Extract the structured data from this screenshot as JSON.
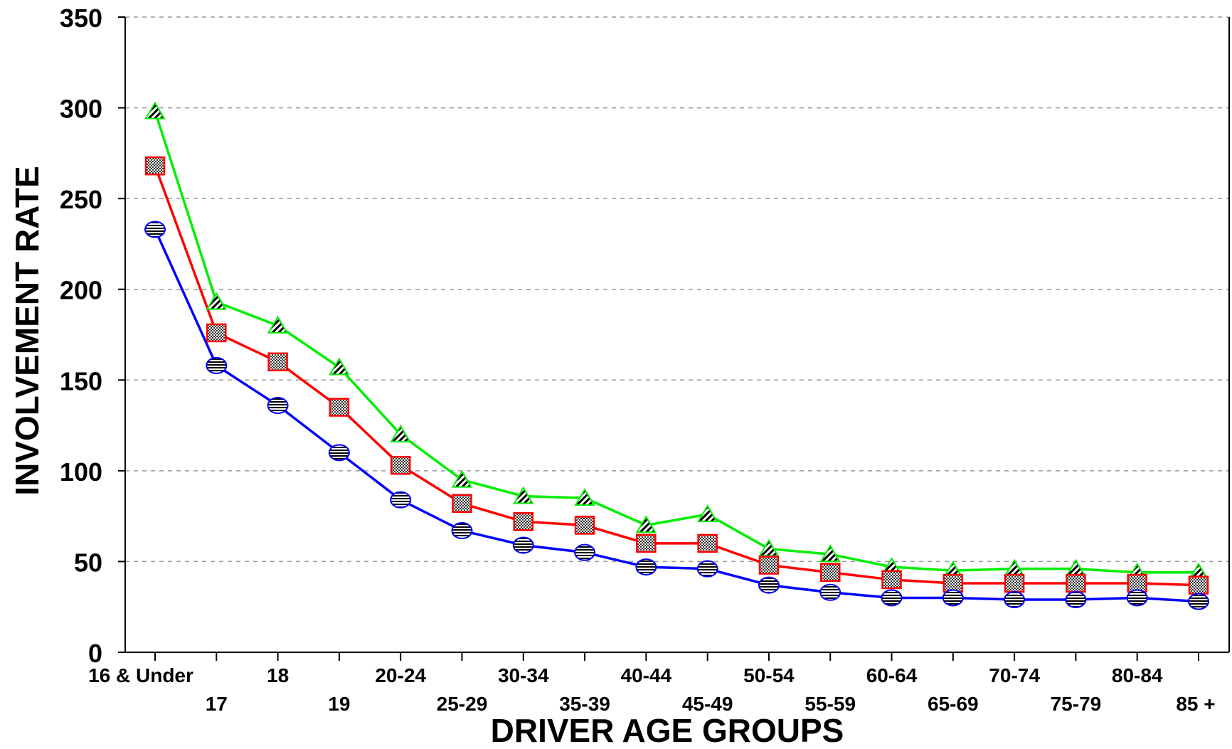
{
  "chart_data": {
    "type": "line",
    "title": "",
    "xlabel": "DRIVER AGE GROUPS",
    "ylabel": "INVOLVEMENT RATE",
    "ylim": [
      0,
      350
    ],
    "yticks": [
      "0",
      "50",
      "100",
      "150",
      "200",
      "250",
      "300",
      "350"
    ],
    "grid": "horizontal dashed",
    "legend": "none",
    "categories": [
      "16 & Under",
      "17",
      "18",
      "19",
      "20-24",
      "25-29",
      "30-34",
      "35-39",
      "40-44",
      "45-49",
      "50-54",
      "55-59",
      "60-64",
      "65-69",
      "70-74",
      "75-79",
      "80-84",
      "85 +"
    ],
    "series": [
      {
        "color": "#00ee00",
        "marker": "triangle",
        "values": [
          298,
          193,
          180,
          157,
          120,
          95,
          86,
          85,
          70,
          76,
          57,
          54,
          47,
          45,
          46,
          46,
          44,
          44
        ]
      },
      {
        "color": "#ff0000",
        "marker": "square",
        "values": [
          268,
          176,
          160,
          135,
          103,
          82,
          72,
          70,
          60,
          60,
          48,
          44,
          40,
          38,
          38,
          38,
          38,
          37
        ]
      },
      {
        "color": "#0000ff",
        "marker": "circle",
        "values": [
          233,
          158,
          136,
          110,
          84,
          67,
          59,
          55,
          47,
          46,
          37,
          33,
          30,
          30,
          29,
          29,
          30,
          28
        ]
      }
    ]
  }
}
